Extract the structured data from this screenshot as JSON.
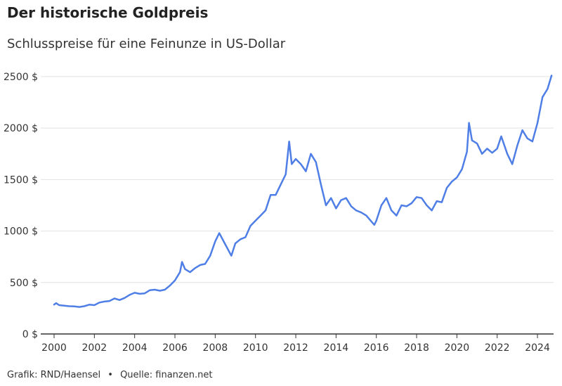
{
  "header": {
    "title": "Der historische Goldpreis",
    "subtitle": "Schlusspreise für eine Feinunze in US-Dollar"
  },
  "footer": {
    "credit": "Grafik: RND/Haensel",
    "separator": "•",
    "source": "Quelle: finanzen.net"
  },
  "colors": {
    "line": "#4f7fe6",
    "grid": "#e2e2e2",
    "axis": "#333333",
    "text": "#333333"
  },
  "chart_data": {
    "type": "line",
    "title": "Der historische Goldpreis",
    "subtitle": "Schlusspreise für eine Feinunze in US-Dollar",
    "xlim": [
      2000,
      2024.8
    ],
    "ylim": [
      0,
      2520
    ],
    "x_ticks": [
      2000,
      2002,
      2004,
      2006,
      2008,
      2010,
      2012,
      2014,
      2016,
      2018,
      2020,
      2022,
      2024
    ],
    "x_tick_labels": [
      "2000",
      "2002",
      "2004",
      "2006",
      "2008",
      "2010",
      "2012",
      "2014",
      "2016",
      "2018",
      "2020",
      "2022",
      "2024"
    ],
    "y_ticks": [
      0,
      500,
      1000,
      1500,
      2000,
      2500
    ],
    "y_tick_labels": [
      "0 $",
      "500 $",
      "1000 $",
      "1500 $",
      "2000 $",
      "2500 $"
    ],
    "grid": "horizontal",
    "legend": "none",
    "series": [
      {
        "x": [
          2000.0,
          2000.1,
          2000.25,
          2000.5,
          2000.75,
          2001.0,
          2001.25,
          2001.5,
          2001.75,
          2002.0,
          2002.25,
          2002.5,
          2002.75,
          2003.0,
          2003.25,
          2003.5,
          2003.75,
          2004.0,
          2004.25,
          2004.5,
          2004.75,
          2005.0,
          2005.25,
          2005.5,
          2005.75,
          2006.0,
          2006.25,
          2006.35,
          2006.5,
          2006.75,
          2007.0,
          2007.25,
          2007.5,
          2007.75,
          2008.0,
          2008.2,
          2008.5,
          2008.8,
          2009.0,
          2009.25,
          2009.5,
          2009.75,
          2010.0,
          2010.25,
          2010.5,
          2010.75,
          2011.0,
          2011.25,
          2011.5,
          2011.67,
          2011.8,
          2012.0,
          2012.25,
          2012.5,
          2012.75,
          2013.0,
          2013.25,
          2013.5,
          2013.75,
          2014.0,
          2014.25,
          2014.5,
          2014.75,
          2015.0,
          2015.25,
          2015.5,
          2015.9,
          2016.0,
          2016.25,
          2016.5,
          2016.75,
          2017.0,
          2017.25,
          2017.5,
          2017.75,
          2018.0,
          2018.25,
          2018.5,
          2018.75,
          2019.0,
          2019.25,
          2019.5,
          2019.75,
          2020.0,
          2020.25,
          2020.5,
          2020.6,
          2020.75,
          2021.0,
          2021.25,
          2021.5,
          2021.75,
          2022.0,
          2022.2,
          2022.5,
          2022.75,
          2023.0,
          2023.25,
          2023.5,
          2023.75,
          2024.0,
          2024.25,
          2024.5,
          2024.7
        ],
        "y": [
          285,
          300,
          280,
          275,
          270,
          268,
          262,
          270,
          285,
          280,
          305,
          315,
          320,
          345,
          330,
          350,
          380,
          400,
          390,
          395,
          425,
          430,
          420,
          430,
          470,
          520,
          600,
          700,
          630,
          600,
          640,
          670,
          680,
          760,
          900,
          980,
          870,
          760,
          880,
          920,
          940,
          1050,
          1100,
          1150,
          1200,
          1350,
          1350,
          1450,
          1550,
          1870,
          1650,
          1700,
          1650,
          1580,
          1750,
          1670,
          1450,
          1250,
          1320,
          1220,
          1300,
          1320,
          1240,
          1200,
          1180,
          1150,
          1060,
          1100,
          1250,
          1320,
          1200,
          1150,
          1250,
          1240,
          1270,
          1330,
          1320,
          1250,
          1200,
          1290,
          1280,
          1420,
          1480,
          1520,
          1600,
          1770,
          2050,
          1880,
          1850,
          1750,
          1800,
          1760,
          1800,
          1920,
          1750,
          1650,
          1830,
          1980,
          1900,
          1870,
          2050,
          2300,
          2380,
          2510
        ]
      }
    ]
  }
}
